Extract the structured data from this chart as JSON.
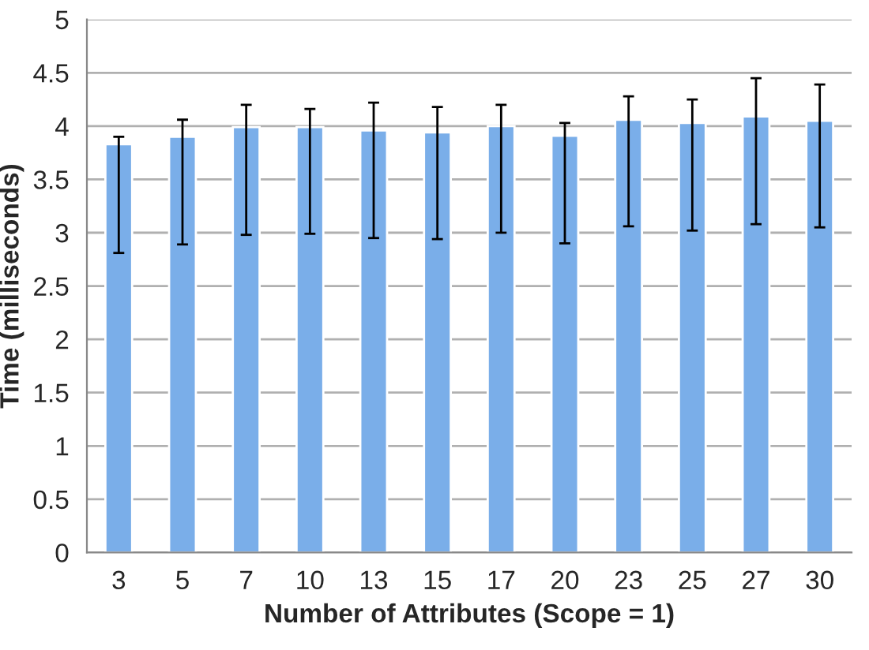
{
  "chart_data": {
    "type": "bar",
    "xlabel": "Number of Attributes (Scope = 1)",
    "ylabel": "Time (milliseconds)",
    "categories": [
      "3",
      "5",
      "7",
      "10",
      "13",
      "15",
      "17",
      "20",
      "23",
      "25",
      "27",
      "30"
    ],
    "values": [
      3.83,
      3.9,
      3.99,
      3.99,
      3.96,
      3.94,
      4.0,
      3.91,
      4.06,
      4.03,
      4.09,
      4.05
    ],
    "errors": [
      [
        2.81,
        3.9
      ],
      [
        2.89,
        4.06
      ],
      [
        2.98,
        4.2
      ],
      [
        2.99,
        4.16
      ],
      [
        2.95,
        4.22
      ],
      [
        2.94,
        4.18
      ],
      [
        3.0,
        4.2
      ],
      [
        2.9,
        4.03
      ],
      [
        3.06,
        4.28
      ],
      [
        3.02,
        4.25
      ],
      [
        3.08,
        4.45
      ],
      [
        3.05,
        4.39
      ]
    ],
    "color": "#7aaee9",
    "ylim": [
      0,
      5
    ],
    "yticks": [
      0,
      0.5,
      1,
      1.5,
      2,
      2.5,
      3,
      3.5,
      4,
      4.5,
      5
    ],
    "grid": "y",
    "legend": false
  }
}
